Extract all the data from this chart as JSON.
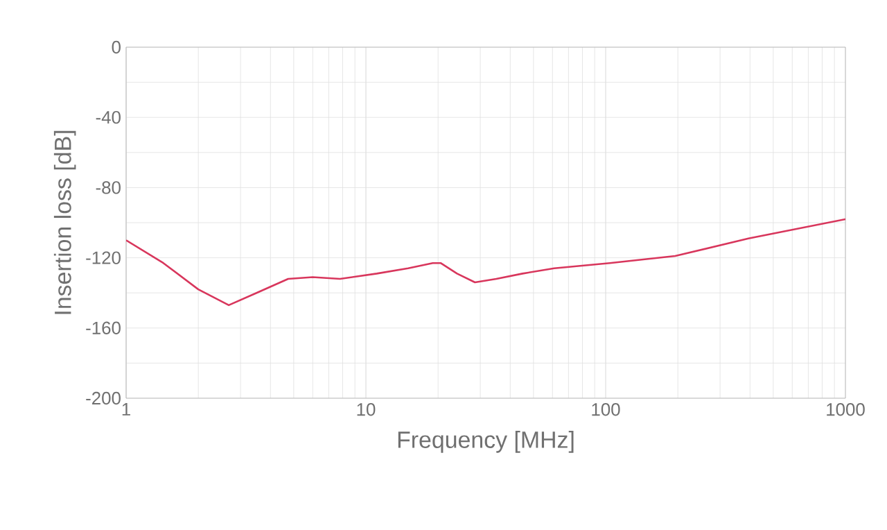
{
  "chart_data": {
    "type": "line",
    "xlabel": "Frequency [MHz]",
    "ylabel": "Insertion loss [dB]",
    "log": "x",
    "grid": true,
    "marker": "none",
    "line_style": "solid",
    "xlim": [
      1,
      1000
    ],
    "xticks": [
      1,
      10,
      100,
      1000
    ],
    "ylim": [
      -200,
      0
    ],
    "yticks": [
      0,
      {
        "value": -20,
        "label": null
      },
      -40,
      {
        "value": -60,
        "label": null
      },
      -80,
      {
        "value": -100,
        "label": null
      },
      -120,
      {
        "value": -140,
        "label": null
      },
      -160,
      {
        "value": -180,
        "label": null
      },
      -200
    ],
    "series": [
      {
        "color": "#d8365c",
        "x": [
          1,
          1.43,
          2,
          2.68,
          3.5,
          4.74,
          6,
          7.8,
          11.1,
          15,
          19,
          20.5,
          24,
          28.5,
          35,
          45,
          61,
          104,
          195,
          394,
          1000
        ],
        "values": [
          -110,
          -123,
          -138,
          -147,
          -140,
          -132,
          -131,
          -132,
          -129,
          -126,
          -123,
          -123,
          -129,
          -134,
          -132,
          -129,
          -126,
          -123,
          -119,
          -109,
          -98
        ]
      }
    ]
  }
}
